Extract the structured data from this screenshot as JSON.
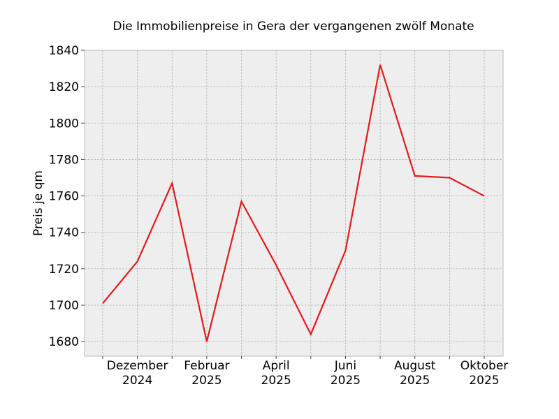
{
  "chart_data": {
    "type": "line",
    "title": "Die Immobilienpreise in Gera der vergangenen zwölf Monate",
    "xlabel": "",
    "ylabel": "Preis je qm",
    "x": [
      "2024-11",
      "2024-12",
      "2025-01",
      "2025-02",
      "2025-03",
      "2025-04",
      "2025-05",
      "2025-06",
      "2025-07",
      "2025-08",
      "2025-09",
      "2025-10"
    ],
    "series": [
      {
        "values": [
          1701,
          1724,
          1767,
          1680,
          1757,
          1722,
          1684,
          1730,
          1832,
          1771,
          1770,
          1760
        ],
        "color": "#e31a1c"
      }
    ],
    "xticks": [
      {
        "x": "2024-12",
        "label": [
          "Dezember",
          "2024"
        ]
      },
      {
        "x": "2025-02",
        "label": [
          "Februar",
          "2025"
        ]
      },
      {
        "x": "2025-04",
        "label": [
          "April",
          "2025"
        ]
      },
      {
        "x": "2025-06",
        "label": [
          "Juni",
          "2025"
        ]
      },
      {
        "x": "2025-08",
        "label": [
          "August",
          "2025"
        ]
      },
      {
        "x": "2025-10",
        "label": [
          "Oktober",
          "2025"
        ]
      }
    ],
    "yticks": [
      1680,
      1700,
      1720,
      1740,
      1760,
      1780,
      1800,
      1820,
      1840
    ],
    "ylim": [
      1672,
      1840
    ],
    "grid": true,
    "background": "#eeeeee"
  }
}
